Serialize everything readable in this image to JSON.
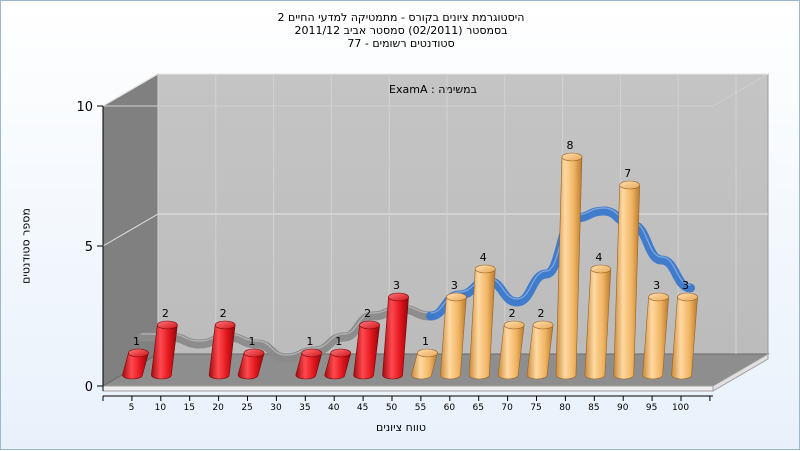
{
  "title_lines": [
    "היסטוגרמת ציונים בקורס - מתמטיקה למדעי החיים 2",
    "בסמסטר (02/2011) סמסטר אביב 2011/12",
    "סטודנטים רשומים - 77"
  ],
  "chart_data": {
    "type": "bar",
    "subtitle": "במשימה : ExamA",
    "xlabel": "טווח ציונים",
    "ylabel": "מספר סטודנטים",
    "categories": [
      "5",
      "10",
      "15",
      "20",
      "25",
      "30",
      "35",
      "40",
      "45",
      "50",
      "55",
      "60",
      "65",
      "70",
      "75",
      "80",
      "85",
      "90",
      "95",
      "100"
    ],
    "values": [
      1,
      2,
      null,
      2,
      1,
      null,
      1,
      1,
      2,
      3,
      1,
      3,
      4,
      2,
      2,
      8,
      4,
      7,
      3,
      3
    ],
    "ylim": [
      0,
      10
    ],
    "yticks": [
      "0",
      "5",
      "10"
    ],
    "bar_colors": {
      "fail": "#e8141b",
      "pass": "#f3b665"
    },
    "fail_below": 55,
    "trend_color": "#3a78cc",
    "trend_color_fail": "#8a8a8a",
    "grid": true
  }
}
